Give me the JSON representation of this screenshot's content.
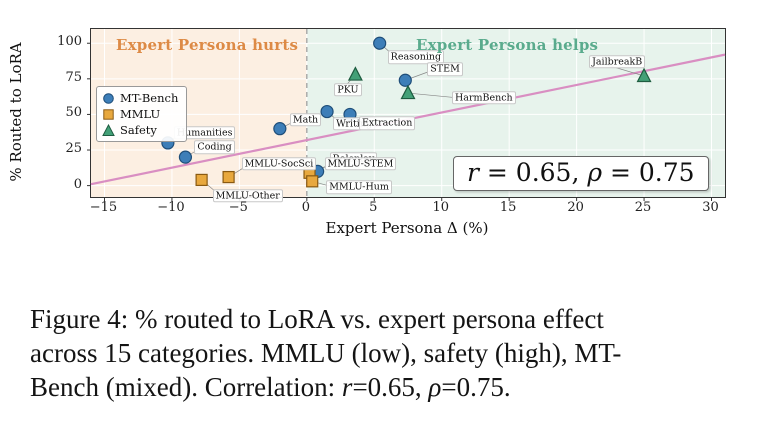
{
  "chart_data": {
    "type": "scatter",
    "title": "",
    "xlabel": "Expert Persona Δ (%)",
    "ylabel": "% Routed to LoRA",
    "xlim": [
      -16,
      31
    ],
    "ylim": [
      -8,
      110
    ],
    "x_ticks": [
      -15,
      -10,
      -5,
      0,
      5,
      10,
      15,
      20,
      25,
      30
    ],
    "x_tick_labels": [
      "−15",
      "−10",
      "−5",
      "0",
      "5",
      "10",
      "15",
      "20",
      "25",
      "30"
    ],
    "y_ticks": [
      0,
      25,
      50,
      75,
      100
    ],
    "y_tick_labels": [
      "0",
      "25",
      "50",
      "75",
      "100"
    ],
    "grid": true,
    "grid_color": "#ffffff",
    "zero_line": {
      "x": 0,
      "color": "#999999",
      "style": "dashed"
    },
    "trend_line": {
      "x": [
        -16,
        31
      ],
      "y": [
        1,
        92
      ],
      "color": "#d98ec2"
    },
    "regions": {
      "hurts": {
        "label": "Expert Persona hurts",
        "bg": "#fcefe2",
        "text_color": "#dd8a45"
      },
      "helps": {
        "label": "Expert Persona helps",
        "bg": "#e7f3ec",
        "text_color": "#5aab8d"
      }
    },
    "legend_position": "upper left",
    "series": [
      {
        "name": "MT-Bench",
        "marker": "circle",
        "color": "#3d7eb8",
        "edge": "#1f4e79",
        "points": [
          {
            "label": "Reasoning",
            "x": 5.4,
            "y": 100,
            "dx": 8,
            "dy": 14
          },
          {
            "label": "STEM",
            "x": 7.3,
            "y": 74,
            "dx": 22,
            "dy": -11
          },
          {
            "label": "Writing",
            "x": 1.5,
            "y": 52,
            "dx": 6,
            "dy": 12
          },
          {
            "label": "Extraction",
            "x": 3.2,
            "y": 50,
            "dx": 9,
            "dy": 9
          },
          {
            "label": "Math",
            "x": -2.0,
            "y": 40,
            "dx": 10,
            "dy": -9
          },
          {
            "label": "Humanities",
            "x": -10.3,
            "y": 30,
            "dx": 6,
            "dy": -10
          },
          {
            "label": "Coding",
            "x": -9.0,
            "y": 20,
            "dx": 9,
            "dy": -10
          },
          {
            "label": "Roleplay",
            "x": 0.8,
            "y": 10,
            "dx": 12,
            "dy": -12
          }
        ]
      },
      {
        "name": "MMLU",
        "marker": "square",
        "color": "#e8a83e",
        "edge": "#8a5a12",
        "points": [
          {
            "label": "MMLU-SocSci",
            "x": -5.8,
            "y": 6,
            "dx": 13,
            "dy": -13
          },
          {
            "label": "MMLU-Other",
            "x": -7.8,
            "y": 4,
            "dx": 11,
            "dy": 16
          },
          {
            "label": "MMLU-STEM",
            "x": 0.2,
            "y": 9,
            "dx": 15,
            "dy": -9
          },
          {
            "label": "MMLU-Hum",
            "x": 0.4,
            "y": 3,
            "dx": 14,
            "dy": 6
          }
        ]
      },
      {
        "name": "Safety",
        "marker": "triangle",
        "color": "#43a077",
        "edge": "#1e5c40",
        "points": [
          {
            "label": "PKU",
            "x": 3.6,
            "y": 78,
            "dx": -21,
            "dy": 15
          },
          {
            "label": "HarmBench",
            "x": 7.5,
            "y": 65,
            "dx": 44,
            "dy": 5
          },
          {
            "label": "JailbreakB",
            "x": 25.0,
            "y": 77,
            "dx": -55,
            "dy": -14
          }
        ]
      }
    ]
  },
  "stats_box": {
    "parts": [
      "r",
      " = 0.65, ",
      "ρ",
      " = 0.75"
    ]
  },
  "caption": {
    "line1": "Figure 4: % routed to LoRA vs. expert persona effect",
    "line2": "across 15 categories. MMLU (low), safety (high), MT-",
    "line3_parts": [
      "Bench (mixed). Correlation: ",
      "r",
      "=0.65, ",
      "ρ",
      "=0.75."
    ]
  }
}
